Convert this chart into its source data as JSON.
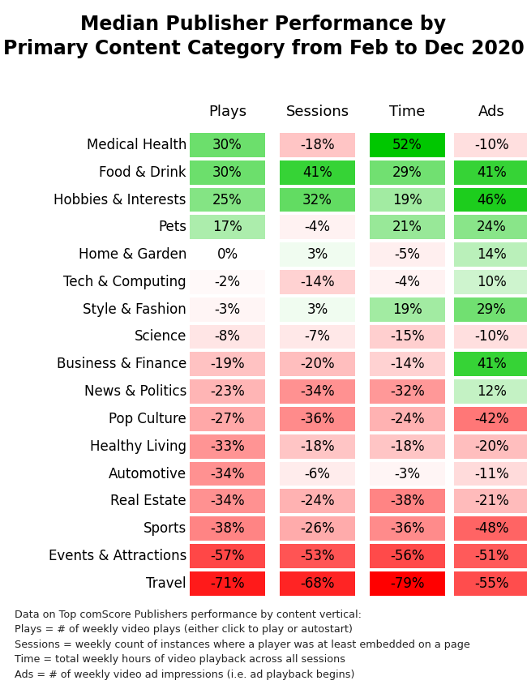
{
  "title": "Median Publisher Performance by\nPrimary Content Category from Feb to Dec 2020",
  "columns": [
    "Plays",
    "Sessions",
    "Time",
    "Ads"
  ],
  "categories": [
    "Medical Health",
    "Food & Drink",
    "Hobbies & Interests",
    "Pets",
    "Home & Garden",
    "Tech & Computing",
    "Style & Fashion",
    "Science",
    "Business & Finance",
    "News & Politics",
    "Pop Culture",
    "Healthy Living",
    "Automotive",
    "Real Estate",
    "Sports",
    "Events & Attractions",
    "Travel"
  ],
  "values": [
    [
      30,
      -18,
      52,
      -10
    ],
    [
      30,
      41,
      29,
      41
    ],
    [
      25,
      32,
      19,
      46
    ],
    [
      17,
      -4,
      21,
      24
    ],
    [
      0,
      3,
      -5,
      14
    ],
    [
      -2,
      -14,
      -4,
      10
    ],
    [
      -3,
      3,
      19,
      29
    ],
    [
      -8,
      -7,
      -15,
      -10
    ],
    [
      -19,
      -20,
      -14,
      41
    ],
    [
      -23,
      -34,
      -32,
      12
    ],
    [
      -27,
      -36,
      -24,
      -42
    ],
    [
      -33,
      -18,
      -18,
      -20
    ],
    [
      -34,
      -6,
      -3,
      -11
    ],
    [
      -34,
      -24,
      -38,
      -21
    ],
    [
      -38,
      -26,
      -36,
      -48
    ],
    [
      -57,
      -53,
      -56,
      -51
    ],
    [
      -71,
      -68,
      -79,
      -55
    ]
  ],
  "footnote_lines": [
    "Data on Top comScore Publishers performance by content vertical:",
    "Plays = # of weekly video plays (either click to play or autostart)",
    "Sessions = weekly count of instances where a player was at least embedded on a page",
    "Time = total weekly hours of video playback across all sessions",
    "Ads = # of weekly video ad impressions (i.e. ad playback begins)"
  ],
  "vmax": 52,
  "vmin": -79
}
